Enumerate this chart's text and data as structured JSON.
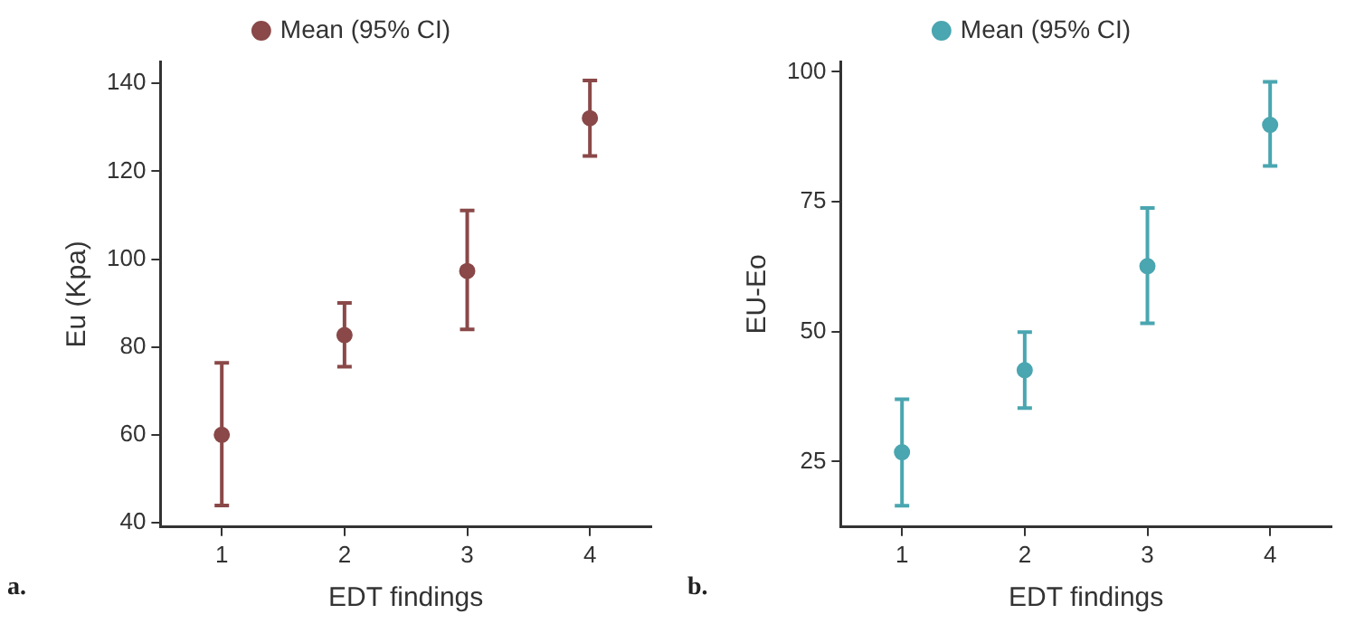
{
  "chart_data": [
    {
      "type": "scatter",
      "categories": [
        "1",
        "2",
        "3",
        "4"
      ],
      "xlabel": "EDT findings",
      "ylabel": "Eu (Kpa)",
      "ylim": [
        39,
        145
      ],
      "yticks": [
        40,
        60,
        80,
        100,
        120,
        140
      ],
      "grid": false,
      "legend": "top",
      "marker": "circle",
      "annotations": [
        "a."
      ],
      "series": [
        {
          "name": "Mean (95% CI)",
          "color": "#8a4848",
          "values": [
            60,
            82.7,
            97.3,
            132.1
          ],
          "errors": [
            [
              43.9,
              76.4
            ],
            [
              75.5,
              90
            ],
            [
              84,
              111.1
            ],
            [
              123.5,
              140.7
            ]
          ]
        }
      ]
    },
    {
      "type": "scatter",
      "categories": [
        "1",
        "2",
        "3",
        "4"
      ],
      "xlabel": "EDT findings",
      "ylabel": "EU-Eo",
      "ylim": [
        12.4,
        102
      ],
      "yticks": [
        25,
        50,
        75,
        100
      ],
      "grid": false,
      "legend": "top",
      "marker": "circle",
      "annotations": [
        "b."
      ],
      "series": [
        {
          "name": "Mean (95% CI)",
          "color": "#4aa6b0",
          "values": [
            26.8,
            42.6,
            62.6,
            89.8
          ],
          "errors": [
            [
              16.5,
              37
            ],
            [
              35.3,
              49.9
            ],
            [
              51.6,
              73.8
            ],
            [
              81.9,
              98.1
            ]
          ]
        }
      ]
    }
  ]
}
